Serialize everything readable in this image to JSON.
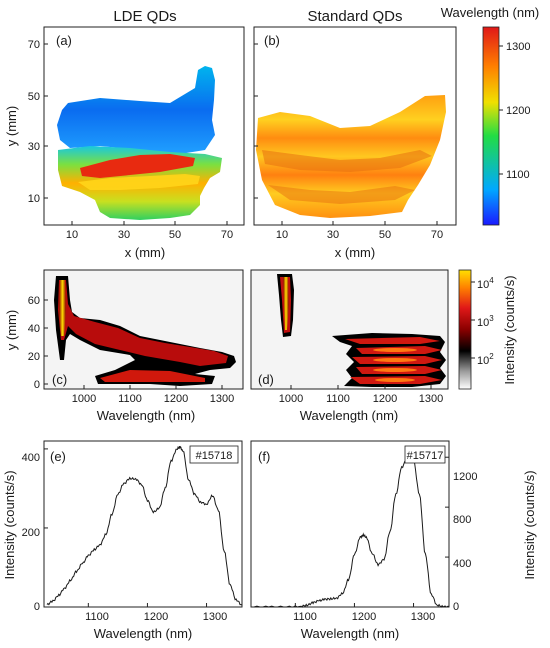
{
  "figure": {
    "panel_a": {
      "letter": "(a)",
      "title": "LDE QDs",
      "xlabel": "x (mm)",
      "ylabel": "y (mm)",
      "xticks": [
        "10",
        "30",
        "50",
        "70"
      ],
      "yticks": [
        "10",
        "30",
        "50",
        "70"
      ]
    },
    "panel_b": {
      "letter": "(b)",
      "title": "Standard QDs",
      "xlabel": "x (mm)",
      "xticks": [
        "10",
        "30",
        "50",
        "70"
      ]
    },
    "colorbar_wavelength": {
      "title": "Wavelength (nm)",
      "ticks": [
        "1300",
        "1200",
        "1100"
      ],
      "colors": [
        "#1a1aff",
        "#00a8ff",
        "#22dd44",
        "#f0e000",
        "#ff8000",
        "#e01818"
      ]
    },
    "panel_c": {
      "letter": "(c)",
      "xlabel": "Wavelength (nm)",
      "ylabel": "y (mm)",
      "xticks": [
        "1000",
        "1100",
        "1200",
        "1300"
      ],
      "yticks": [
        "0",
        "20",
        "40",
        "60"
      ]
    },
    "panel_d": {
      "letter": "(d)",
      "xlabel": "Wavelength (nm)",
      "xticks": [
        "1000",
        "1100",
        "1200",
        "1300"
      ]
    },
    "colorbar_intensity": {
      "title": "Intensity (counts/s)",
      "ticks": [
        "10",
        "10",
        "10"
      ],
      "exponents": [
        "4",
        "3",
        "2"
      ],
      "colors": [
        "#ffffff",
        "#808080",
        "#000000",
        "#8a0000",
        "#e01818",
        "#ff8000",
        "#ffe000"
      ]
    },
    "panel_e": {
      "letter": "(e)",
      "sample": "#15718",
      "xlabel": "Wavelength (nm)",
      "ylabel": "Intensity (counts/s)",
      "xticks": [
        "1100",
        "1200",
        "1300"
      ],
      "yticks": [
        "0",
        "200",
        "400"
      ]
    },
    "panel_f": {
      "letter": "(f)",
      "sample": "#15717",
      "xlabel": "Wavelength (nm)",
      "ylabel": "Intensity (counts/s)",
      "xticks": [
        "1100",
        "1200",
        "1300"
      ],
      "yticks": [
        "0",
        "400",
        "800",
        "1200"
      ]
    }
  },
  "chart_data": [
    {
      "type": "line",
      "panel": "(e)",
      "xlabel": "Wavelength (nm)",
      "ylabel": "Intensity (counts/s)",
      "xlim": [
        1025,
        1360
      ],
      "ylim": [
        0,
        420
      ],
      "x": [
        1030,
        1040,
        1050,
        1060,
        1070,
        1080,
        1090,
        1100,
        1110,
        1120,
        1130,
        1140,
        1150,
        1160,
        1170,
        1180,
        1190,
        1200,
        1210,
        1220,
        1230,
        1240,
        1250,
        1255,
        1260,
        1270,
        1280,
        1290,
        1300,
        1310,
        1320,
        1330,
        1340,
        1350,
        1360
      ],
      "y": [
        6,
        15,
        30,
        48,
        68,
        90,
        110,
        130,
        145,
        158,
        185,
        235,
        285,
        312,
        325,
        324,
        310,
        270,
        240,
        250,
        300,
        370,
        400,
        405,
        395,
        320,
        285,
        265,
        260,
        282,
        245,
        140,
        55,
        18,
        5
      ]
    },
    {
      "type": "line",
      "panel": "(f)",
      "xlabel": "Wavelength (nm)",
      "ylabel": "Intensity (counts/s)",
      "xlim": [
        1025,
        1360
      ],
      "ylim": [
        0,
        1330
      ],
      "x": [
        1030,
        1060,
        1090,
        1110,
        1120,
        1130,
        1140,
        1150,
        1160,
        1170,
        1180,
        1190,
        1200,
        1210,
        1215,
        1220,
        1230,
        1240,
        1250,
        1260,
        1270,
        1280,
        1290,
        1295,
        1300,
        1310,
        1320,
        1330,
        1340,
        1350,
        1360
      ],
      "y": [
        0,
        0,
        0,
        5,
        15,
        35,
        50,
        62,
        65,
        72,
        110,
        220,
        420,
        560,
        575,
        560,
        430,
        340,
        380,
        600,
        900,
        1120,
        1200,
        1210,
        1170,
        900,
        420,
        100,
        15,
        3,
        0
      ]
    }
  ]
}
